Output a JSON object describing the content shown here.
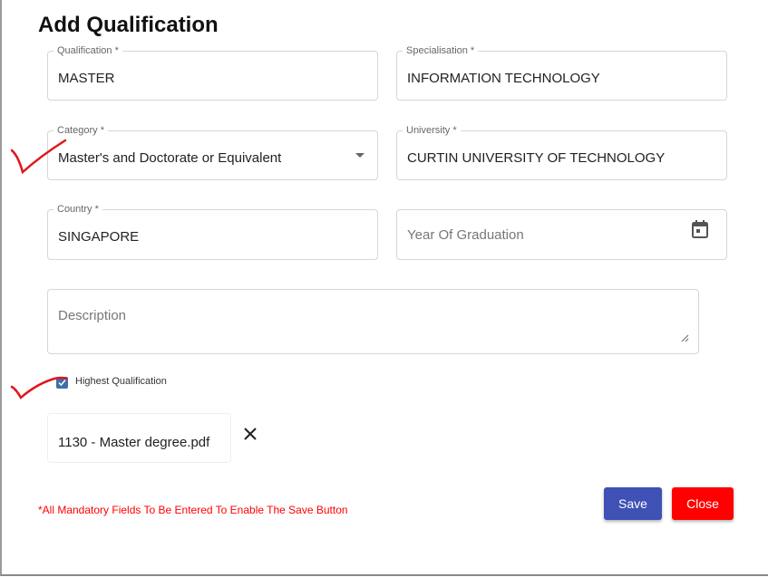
{
  "dialog": {
    "title": "Add Qualification"
  },
  "fields": {
    "qualification": {
      "label": "Qualification *",
      "value": "MASTER"
    },
    "specialisation": {
      "label": "Specialisation *",
      "value": "INFORMATION TECHNOLOGY"
    },
    "category": {
      "label": "Category *",
      "value": "Master's and Doctorate or Equivalent"
    },
    "university": {
      "label": "University *",
      "value": "CURTIN UNIVERSITY OF TECHNOLOGY"
    },
    "country": {
      "label": "Country *",
      "value": "SINGAPORE"
    },
    "year": {
      "placeholder": "Year Of Graduation"
    },
    "description": {
      "placeholder": "Description"
    }
  },
  "highest": {
    "label": "Highest Qualification",
    "checked": true
  },
  "attachment": {
    "filename": "1130 - Master degree.pdf"
  },
  "footer": {
    "message": "*All Mandatory Fields To Be Entered To Enable The Save Button",
    "save": "Save",
    "close": "Close"
  },
  "colors": {
    "save": "#3f51b5",
    "close": "#ff0000",
    "annotation": "#e0161c"
  }
}
